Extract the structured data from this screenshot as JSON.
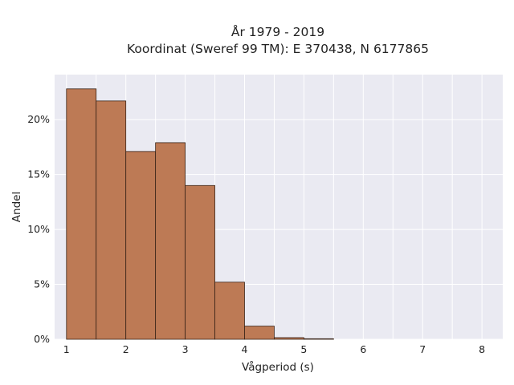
{
  "chart_data": {
    "type": "bar",
    "title_lines": [
      "År 1979 - 2019",
      "Koordinat (Sweref 99 TM): E 370438, N 6177865"
    ],
    "xlabel": "Vågperiod (s)",
    "ylabel": "Andel",
    "bin_width": 0.5,
    "bins": [
      {
        "x_start": 1.0,
        "value": 22.8
      },
      {
        "x_start": 1.5,
        "value": 21.7
      },
      {
        "x_start": 2.0,
        "value": 17.1
      },
      {
        "x_start": 2.5,
        "value": 17.9
      },
      {
        "x_start": 3.0,
        "value": 14.0
      },
      {
        "x_start": 3.5,
        "value": 5.2
      },
      {
        "x_start": 4.0,
        "value": 1.2
      },
      {
        "x_start": 4.5,
        "value": 0.15
      },
      {
        "x_start": 5.0,
        "value": 0.05
      }
    ],
    "xlim": [
      0.8,
      8.35
    ],
    "ylim": [
      0,
      24.1
    ],
    "x_ticks": [
      1,
      2,
      3,
      4,
      5,
      6,
      7,
      8
    ],
    "x_tick_labels": [
      "1",
      "2",
      "3",
      "4",
      "5",
      "6",
      "7",
      "8"
    ],
    "y_ticks": [
      0,
      5,
      10,
      15,
      20
    ],
    "y_tick_labels": [
      "0%",
      "5%",
      "10%",
      "15%",
      "20%"
    ],
    "grid": true,
    "colors": {
      "bar": "#bd7a55",
      "plot_background": "#eaeaf2",
      "grid": "#ffffff"
    }
  }
}
